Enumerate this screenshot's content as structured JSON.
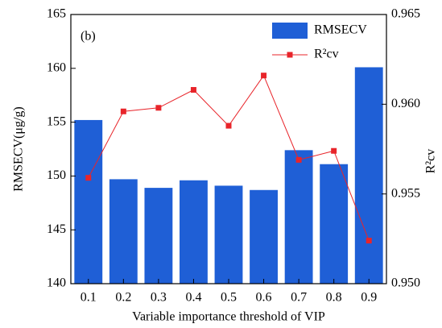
{
  "chart_data": {
    "type": "bar-line",
    "annotation": "(b)",
    "x_label": "Variable importance threshold of VIP",
    "y_label": "RMSECV(μg/g)",
    "y2_label": "R²cv",
    "categories": [
      "0.1",
      "0.2",
      "0.3",
      "0.4",
      "0.5",
      "0.6",
      "0.7",
      "0.8",
      "0.9"
    ],
    "series": [
      {
        "name": "RMSECV",
        "type": "bar",
        "color": "#1f5fd6",
        "values": [
          155.2,
          149.7,
          148.9,
          149.6,
          149.1,
          148.7,
          152.4,
          151.1,
          160.1
        ]
      },
      {
        "name": "R²cv",
        "type": "line",
        "axis": "y2",
        "color": "#e8242a",
        "values": [
          0.9559,
          0.9596,
          0.9598,
          0.9608,
          0.9588,
          0.9616,
          0.9569,
          0.9574,
          0.9524
        ]
      }
    ],
    "ylim": [
      140,
      165
    ],
    "yticks": [
      140,
      145,
      150,
      155,
      160,
      165
    ],
    "y2lim": [
      0.95,
      0.965
    ],
    "y2ticks": [
      {
        "value": 0.95,
        "label": "0.950"
      },
      {
        "value": 0.955,
        "label": "0.955"
      },
      {
        "value": 0.96,
        "label": "0.960"
      },
      {
        "value": 0.965,
        "label": "0.965"
      }
    ],
    "legend": "upper right"
  }
}
